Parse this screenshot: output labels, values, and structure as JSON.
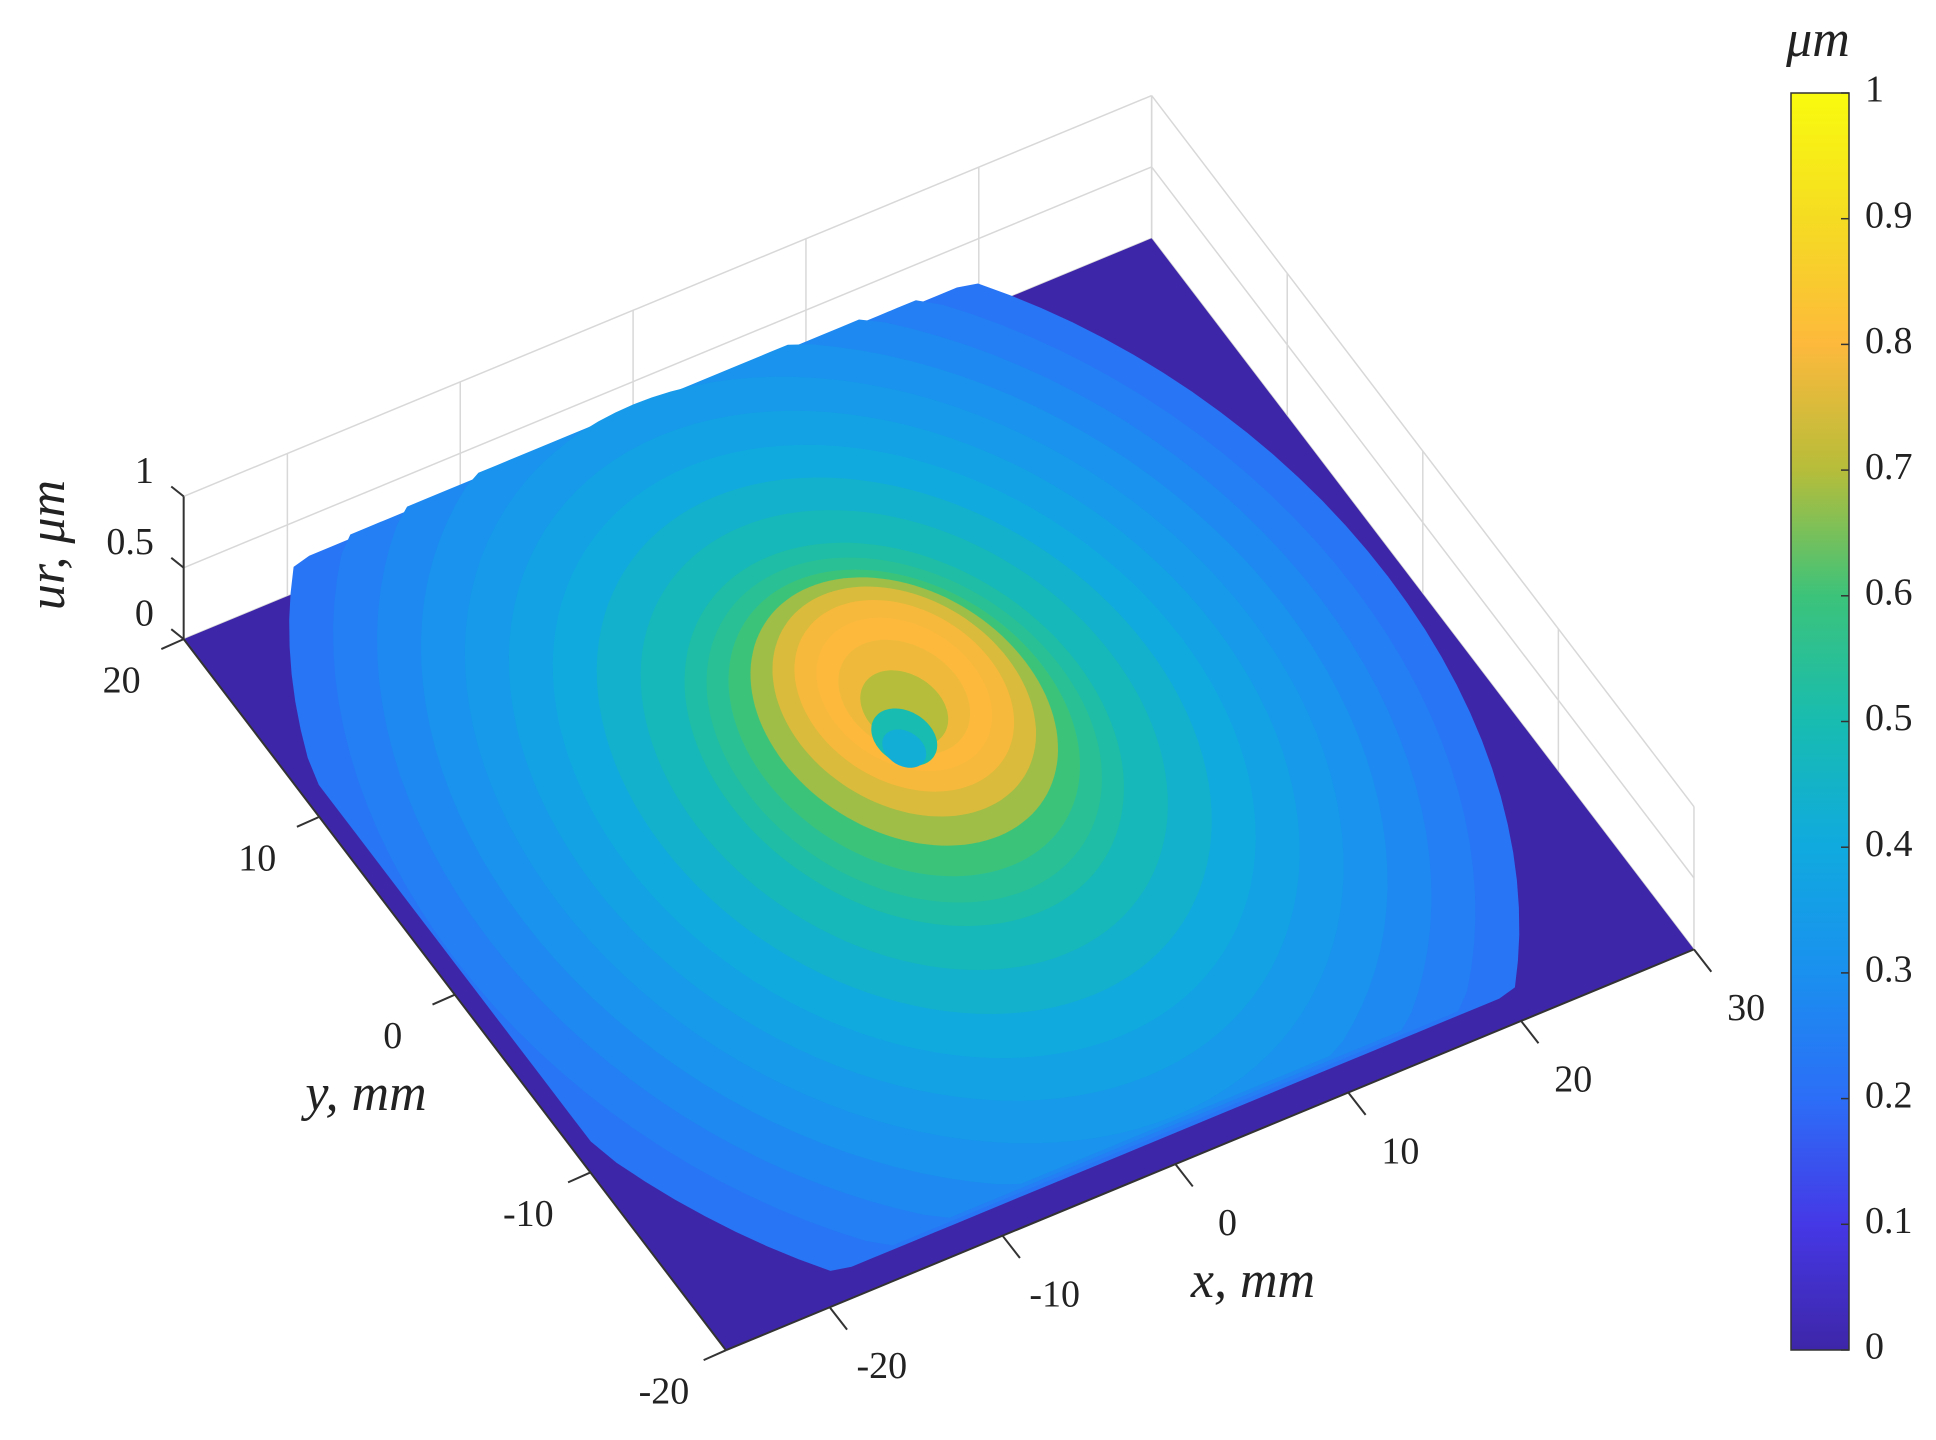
{
  "chart_data": {
    "type": "surface",
    "xlabel": "x, mm",
    "ylabel": "y, mm",
    "zlabel": "ur, μm",
    "colorbar_label": "μm",
    "xlim": [
      -26,
      30
    ],
    "ylim": [
      -20,
      20
    ],
    "zlim": [
      0,
      1
    ],
    "xticks": [
      -20,
      -10,
      0,
      10,
      20,
      30
    ],
    "yticks": [
      -20,
      -10,
      0,
      10,
      20
    ],
    "zticks": [
      0,
      0.5,
      1
    ],
    "clim": [
      0,
      1
    ],
    "cticks": [
      0,
      0.1,
      0.2,
      0.3,
      0.4,
      0.5,
      0.6,
      0.7,
      0.8,
      0.9,
      1
    ],
    "colormap": [
      "#3e26a8",
      "#4538e6",
      "#2c6ef7",
      "#1a90ef",
      "#10aadf",
      "#18bcb0",
      "#3cc37a",
      "#b6bd3a",
      "#fdb93c",
      "#f5dc22",
      "#f9fb0e"
    ],
    "grid": true,
    "radius": [
      28,
      26,
      24,
      22,
      20,
      18,
      16,
      14,
      12,
      10,
      9,
      8,
      7,
      6,
      5,
      4,
      3,
      2,
      1.5,
      1
    ],
    "values": [
      0.22,
      0.25,
      0.28,
      0.31,
      0.34,
      0.37,
      0.4,
      0.44,
      0.48,
      0.52,
      0.55,
      0.6,
      0.68,
      0.75,
      0.79,
      0.8,
      0.78,
      0.7,
      0.5,
      0.42
    ]
  }
}
